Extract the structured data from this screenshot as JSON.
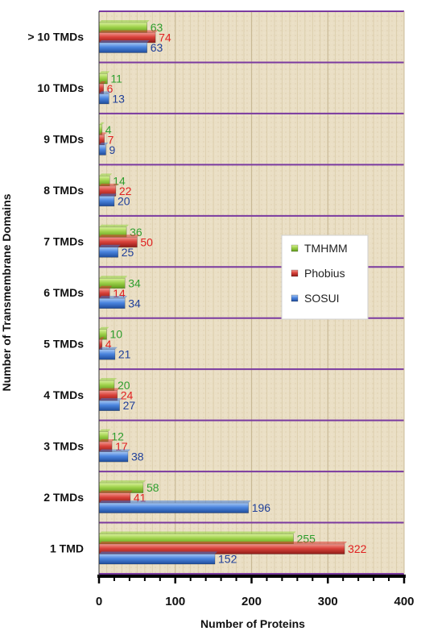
{
  "chart_data": {
    "type": "bar",
    "orientation": "horizontal",
    "categories": [
      "1 TMD",
      "2 TMDs",
      "3 TMDs",
      "4 TMDs",
      "5 TMDs",
      "6 TMDs",
      "7 TMDs",
      "8 TMDs",
      "9 TMDs",
      "10 TMDs",
      "> 10 TMDs"
    ],
    "series": [
      {
        "name": "TMHMM",
        "color": "#8fd13a",
        "label_color": "#2e9e2e",
        "values": [
          255,
          58,
          12,
          20,
          10,
          34,
          36,
          14,
          4,
          11,
          63
        ]
      },
      {
        "name": "Phobius",
        "color": "#d93a33",
        "label_color": "#e02020",
        "values": [
          322,
          41,
          17,
          24,
          4,
          14,
          50,
          22,
          7,
          6,
          74
        ]
      },
      {
        "name": "SOSUI",
        "color": "#3f7ad6",
        "label_color": "#1f3f99",
        "values": [
          152,
          196,
          38,
          27,
          21,
          34,
          25,
          20,
          9,
          13,
          63
        ]
      }
    ],
    "xlabel": "Number of Proteins",
    "ylabel": "Number of Transmembrane Domains",
    "xlim": [
      0,
      400
    ],
    "xticks": [
      "0",
      "100",
      "200",
      "300",
      "400"
    ],
    "grid": true,
    "legend_position": "middle-right",
    "background": "#e9dfc6",
    "gridline_color": "#7a3aa0"
  }
}
